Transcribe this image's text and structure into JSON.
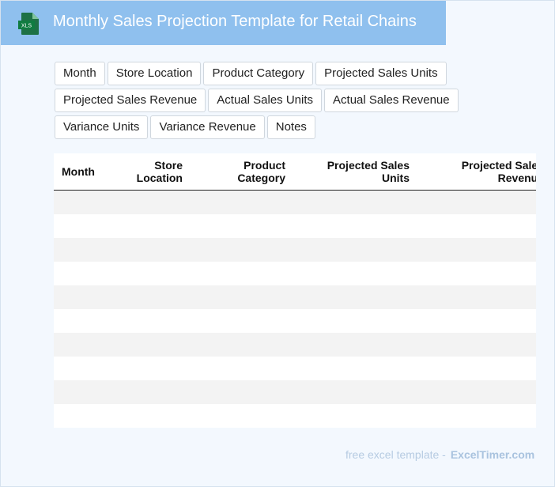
{
  "header": {
    "title": "Monthly Sales Projection Template for Retail Chains",
    "file_icon": "xls-file-icon",
    "file_icon_label": "XLS",
    "color": "#8fc0ee"
  },
  "chips": [
    "Month",
    "Store Location",
    "Product Category",
    "Projected Sales Units",
    "Projected Sales Revenue",
    "Actual Sales Units",
    "Actual Sales Revenue",
    "Variance Units",
    "Variance Revenue",
    "Notes"
  ],
  "table": {
    "columns": [
      {
        "line1": "Month",
        "line2": ""
      },
      {
        "line1": "Store",
        "line2": "Location"
      },
      {
        "line1": "Product",
        "line2": "Category"
      },
      {
        "line1": "Projected Sales",
        "line2": "Units"
      },
      {
        "line1": "Projected Sales",
        "line2": "Revenue"
      }
    ],
    "row_count": 10
  },
  "footer": {
    "text": "free excel template -",
    "brand": "ExcelTimer.com"
  }
}
